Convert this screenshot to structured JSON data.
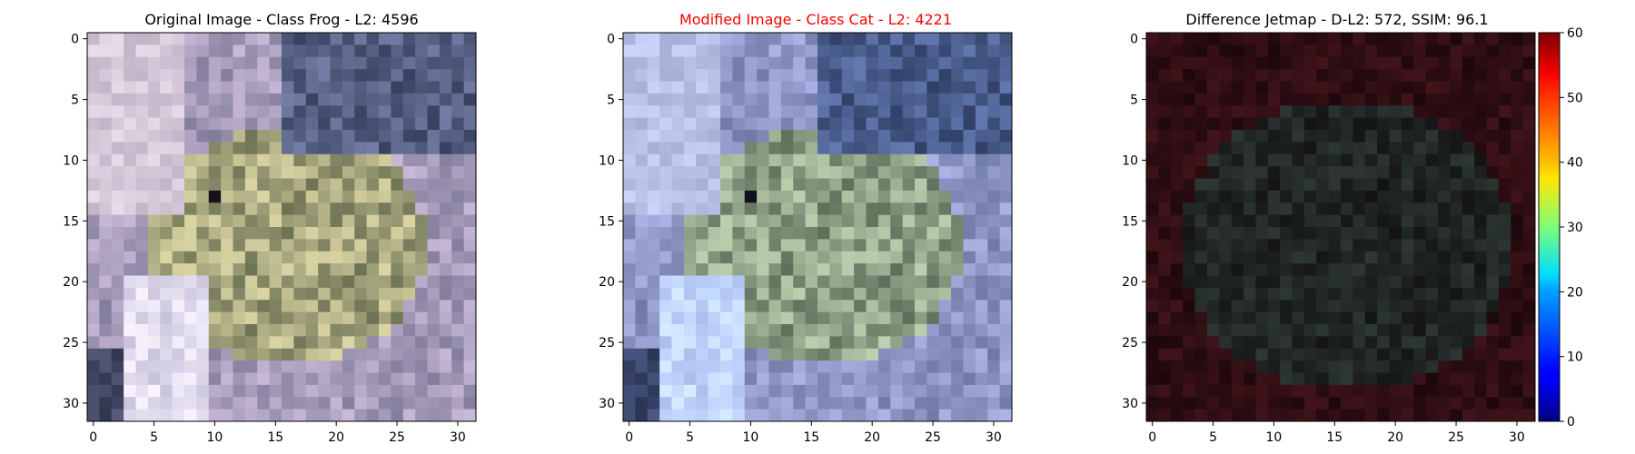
{
  "panels": [
    {
      "title": "Original Image - Class Frog - L2: 4596",
      "title_color": "#000000",
      "tint": [
        1.0,
        1.0,
        1.0
      ],
      "gain": 1.0,
      "bias": 0
    },
    {
      "title": "Modified Image - Class Cat - L2: 4221",
      "title_color": "#ff0000",
      "tint": [
        0.86,
        0.97,
        1.07
      ],
      "gain": 1.0,
      "bias": 0
    },
    {
      "title": "Difference Jetmap - D-L2: 572, SSIM: 96.1",
      "title_color": "#000000",
      "tint": [
        1.0,
        1.0,
        1.0
      ],
      "gain": 0.22,
      "bias": 0
    }
  ],
  "axis_ticks": {
    "x": [
      "0",
      "5",
      "10",
      "15",
      "20",
      "25",
      "30"
    ],
    "y": [
      "0",
      "5",
      "10",
      "15",
      "20",
      "25",
      "30"
    ]
  },
  "colorbar": {
    "ticks": [
      "0",
      "10",
      "20",
      "30",
      "40",
      "50",
      "60"
    ],
    "range": [
      0,
      60
    ],
    "colormap": "jet"
  }
}
